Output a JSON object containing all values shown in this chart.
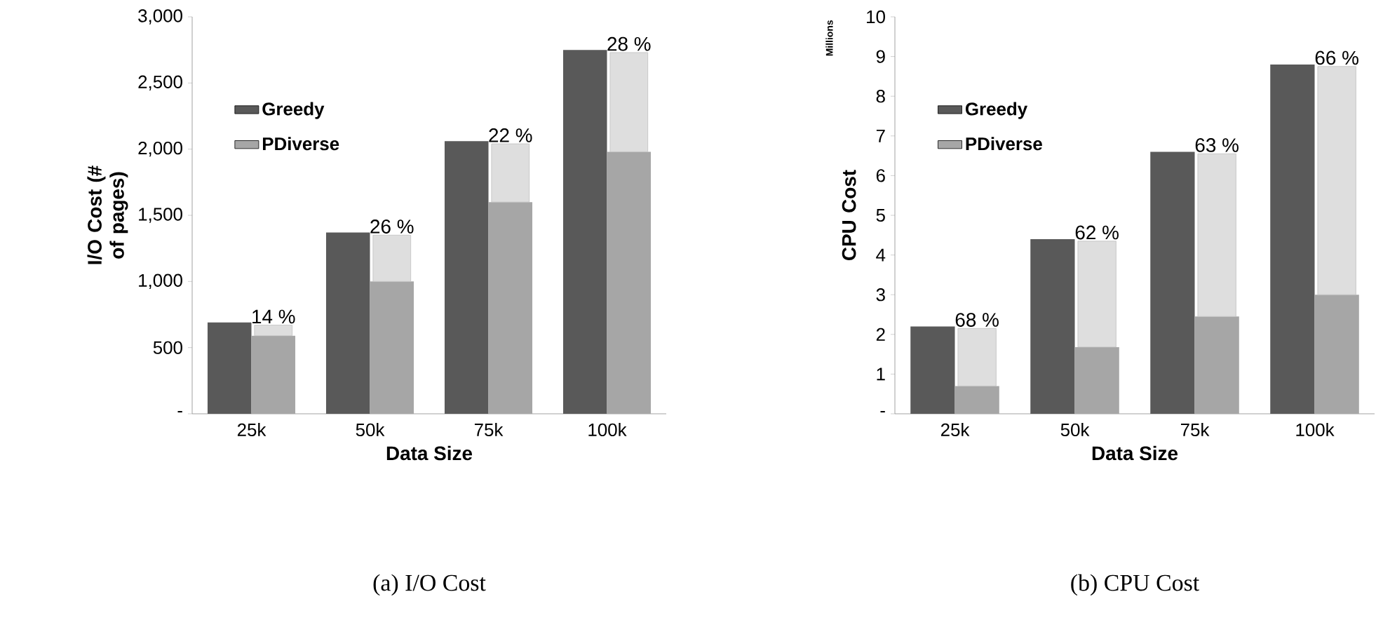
{
  "chart_data": [
    {
      "type": "bar",
      "xlabel": "Data Size",
      "ylabel": "I/O Cost (# of pages)",
      "categories": [
        "25k",
        "50k",
        "75k",
        "100k"
      ],
      "series": [
        {
          "name": "Greedy",
          "color": "#595959",
          "values": [
            690,
            1370,
            2060,
            2750
          ]
        },
        {
          "name": "PDiverse",
          "color": "#a6a6a6",
          "values": [
            590,
            1000,
            1600,
            1980
          ]
        },
        {
          "color": "#dedede",
          "base": [
            590,
            1000,
            1600,
            1980
          ],
          "values": [
            80,
            350,
            440,
            750
          ]
        }
      ],
      "ylim": [
        0,
        3000
      ],
      "yticks": [
        {
          "value": 0,
          "label": "-"
        },
        500,
        {
          "value": 1000,
          "label": "1,000"
        },
        {
          "value": 1500,
          "label": "1,500"
        },
        {
          "value": 2000,
          "label": "2,000"
        },
        {
          "value": 2500,
          "label": "2,500"
        },
        {
          "value": 3000,
          "label": "3,000"
        }
      ],
      "legend": "top left",
      "annotations": [
        {
          "text": "14 %",
          "x": "25k",
          "y": 670
        },
        {
          "text": "26 %",
          "x": "50k",
          "y": 1350
        },
        {
          "text": "22 %",
          "x": "75k",
          "y": 2040
        },
        {
          "text": "28 %",
          "x": "100k",
          "y": 2730
        },
        "(a) I/O Cost"
      ]
    },
    {
      "type": "bar",
      "xlabel": "Data Size",
      "ylabel": "CPU Cost",
      "categories": [
        "25k",
        "50k",
        "75k",
        "100k"
      ],
      "series": [
        {
          "name": "Greedy",
          "color": "#595959",
          "values": [
            2.2,
            4.4,
            6.6,
            8.8
          ]
        },
        {
          "name": "PDiverse",
          "color": "#a6a6a6",
          "values": [
            0.7,
            1.68,
            2.45,
            3.0
          ]
        },
        {
          "color": "#dedede",
          "base": [
            0.7,
            1.68,
            2.45,
            3.0
          ],
          "values": [
            1.45,
            2.67,
            4.1,
            5.75
          ]
        }
      ],
      "ylim": [
        0,
        10
      ],
      "yticks": [
        {
          "value": 0,
          "label": "-"
        },
        1,
        2,
        3,
        4,
        5,
        6,
        7,
        8,
        9,
        10
      ],
      "legend": "top left",
      "annotations": [
        {
          "text": "68 %",
          "x": "25k",
          "y": 2.15
        },
        {
          "text": "62 %",
          "x": "50k",
          "y": 4.35
        },
        {
          "text": "63 %",
          "x": "75k",
          "y": 6.55
        },
        {
          "text": "66 %",
          "x": "100k",
          "y": 8.75
        },
        "Millions",
        "(b) CPU Cost"
      ]
    }
  ]
}
